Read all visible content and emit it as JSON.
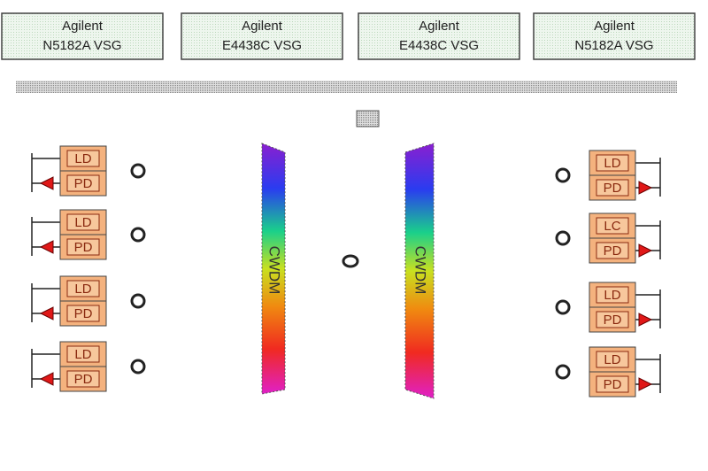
{
  "instruments": [
    {
      "line1": "Agilent",
      "line2": "N5182A VSG"
    },
    {
      "line1": "Agilent",
      "line2": "E4438C VSG"
    },
    {
      "line1": "Agilent",
      "line2": "E4438C VSG"
    },
    {
      "line1": "Agilent",
      "line2": "N5182A VSG"
    }
  ],
  "left_transceivers": [
    {
      "top": "LD",
      "bottom": "PD"
    },
    {
      "top": "LD",
      "bottom": "PD"
    },
    {
      "top": "LD",
      "bottom": "PD"
    },
    {
      "top": "LD",
      "bottom": "PD"
    }
  ],
  "right_transceivers": [
    {
      "top": "LD",
      "bottom": "PD"
    },
    {
      "top": "LC",
      "bottom": "PD"
    },
    {
      "top": "LD",
      "bottom": "PD"
    },
    {
      "top": "LD",
      "bottom": "PD"
    }
  ],
  "multiplexers": [
    {
      "label": "CWDM"
    },
    {
      "label": "CWDM"
    }
  ]
}
